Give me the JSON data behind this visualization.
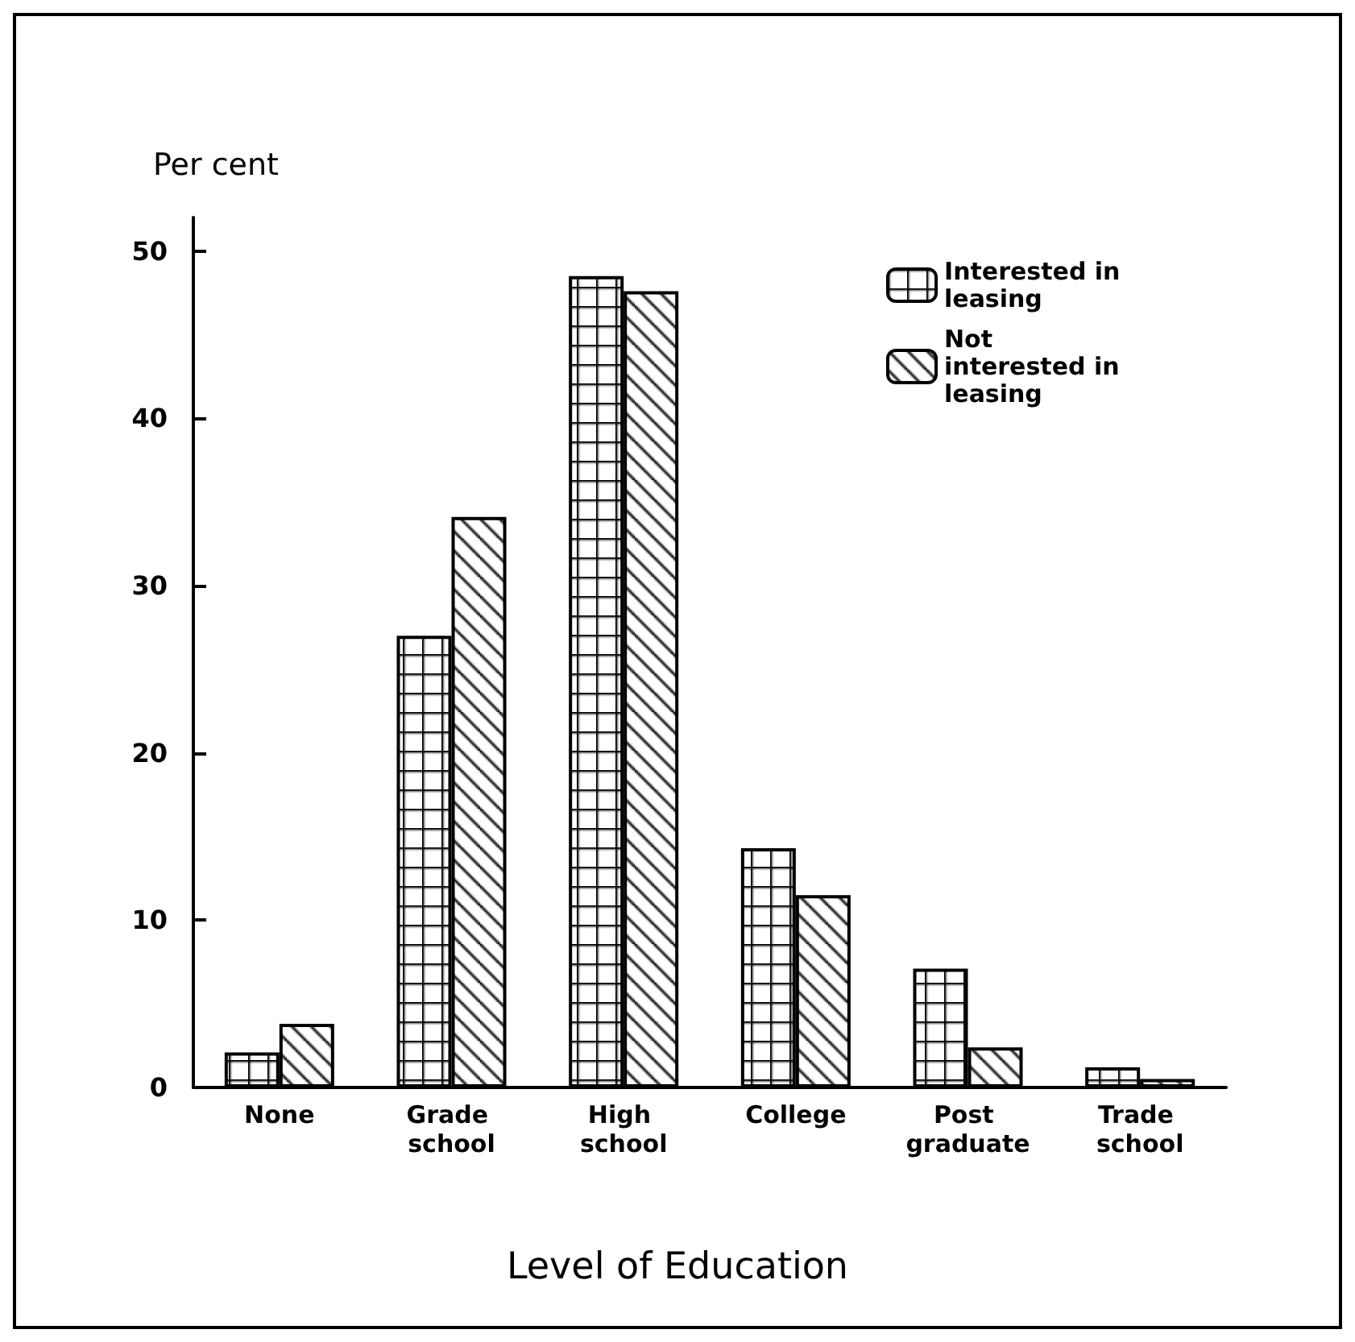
{
  "chart_data": {
    "type": "bar",
    "ylabel": "Per cent",
    "xlabel": "Level of Education",
    "categories": [
      "None",
      "Grade school",
      "High school",
      "College",
      "Post graduate",
      "Trade school"
    ],
    "series": [
      {
        "name": "Interested in leasing",
        "color": "#000000",
        "values": [
          2.1,
          27.0,
          48.5,
          14.3,
          7.1,
          1.2
        ]
      },
      {
        "name": "Not interested in leasing",
        "color": "#000000",
        "values": [
          3.8,
          34.1,
          47.6,
          11.5,
          2.4,
          0.5
        ]
      }
    ],
    "ylim": [
      0,
      52
    ],
    "yticks": [
      0,
      10,
      20,
      30,
      40,
      50
    ],
    "grid": false,
    "legend": "top right"
  }
}
